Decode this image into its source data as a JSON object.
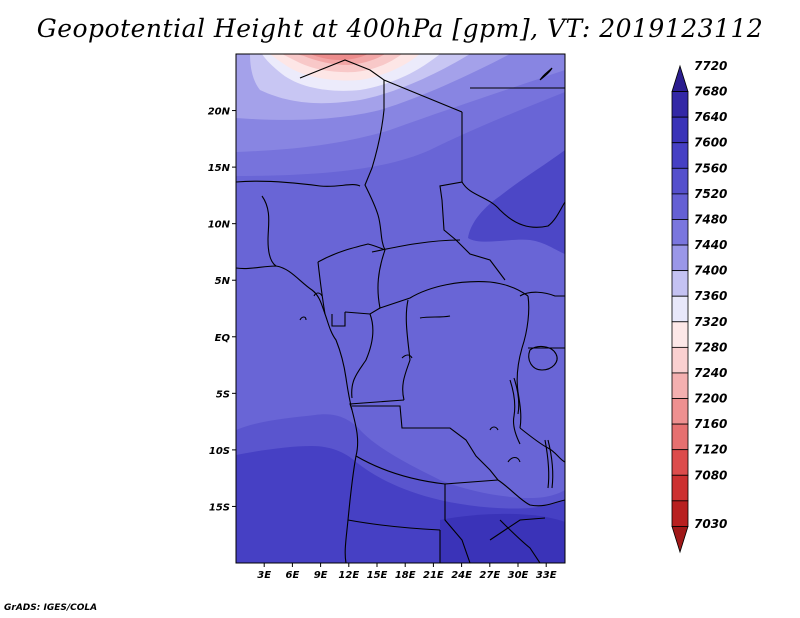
{
  "title": "Geopotential Height at 400hPa [gpm], VT: 2019123112",
  "credit": "GrADS: IGES/COLA",
  "map": {
    "lon_range": [
      0,
      35
    ],
    "lat_range": [
      -20,
      25
    ],
    "x_ticks": [
      "3E",
      "6E",
      "9E",
      "12E",
      "15E",
      "18E",
      "21E",
      "24E",
      "27E",
      "30E",
      "33E"
    ],
    "x_tick_values": [
      3,
      6,
      9,
      12,
      15,
      18,
      21,
      24,
      27,
      30,
      33
    ],
    "y_ticks": [
      "20N",
      "15N",
      "10N",
      "5N",
      "EQ",
      "5S",
      "10S",
      "15S"
    ],
    "y_tick_values": [
      20,
      15,
      10,
      5,
      0,
      -5,
      -10,
      -15
    ]
  },
  "colorbar": {
    "labels": [
      "7720",
      "7680",
      "7640",
      "7600",
      "7560",
      "7520",
      "7480",
      "7440",
      "7400",
      "7360",
      "7320",
      "7280",
      "7240",
      "7200",
      "7160",
      "7120",
      "7080",
      "7030"
    ],
    "colors": [
      "#2b1d8f",
      "#3328a6",
      "#3a33b8",
      "#4640c4",
      "#5550cc",
      "#6560d4",
      "#7a76de",
      "#9a97e8",
      "#c4c2f2",
      "#e8e8fa",
      "#fde8e8",
      "#fad0d0",
      "#f4b0b0",
      "#ee9090",
      "#e67070",
      "#dc4c4c",
      "#cc3030",
      "#b82020",
      "#a01818"
    ]
  },
  "chart_data": {
    "type": "heatmap",
    "title": "Geopotential Height at 400hPa [gpm], VT: 2019123112",
    "xlabel": "",
    "ylabel": "",
    "x_range": [
      0,
      35
    ],
    "y_range": [
      -20,
      25
    ],
    "levels": [
      7030,
      7080,
      7120,
      7160,
      7200,
      7240,
      7280,
      7320,
      7360,
      7400,
      7440,
      7480,
      7520,
      7560,
      7600,
      7640,
      7680,
      7720
    ],
    "notes_min_region": "north near 12E 25N",
    "value_range": [
      7320,
      7600
    ]
  }
}
